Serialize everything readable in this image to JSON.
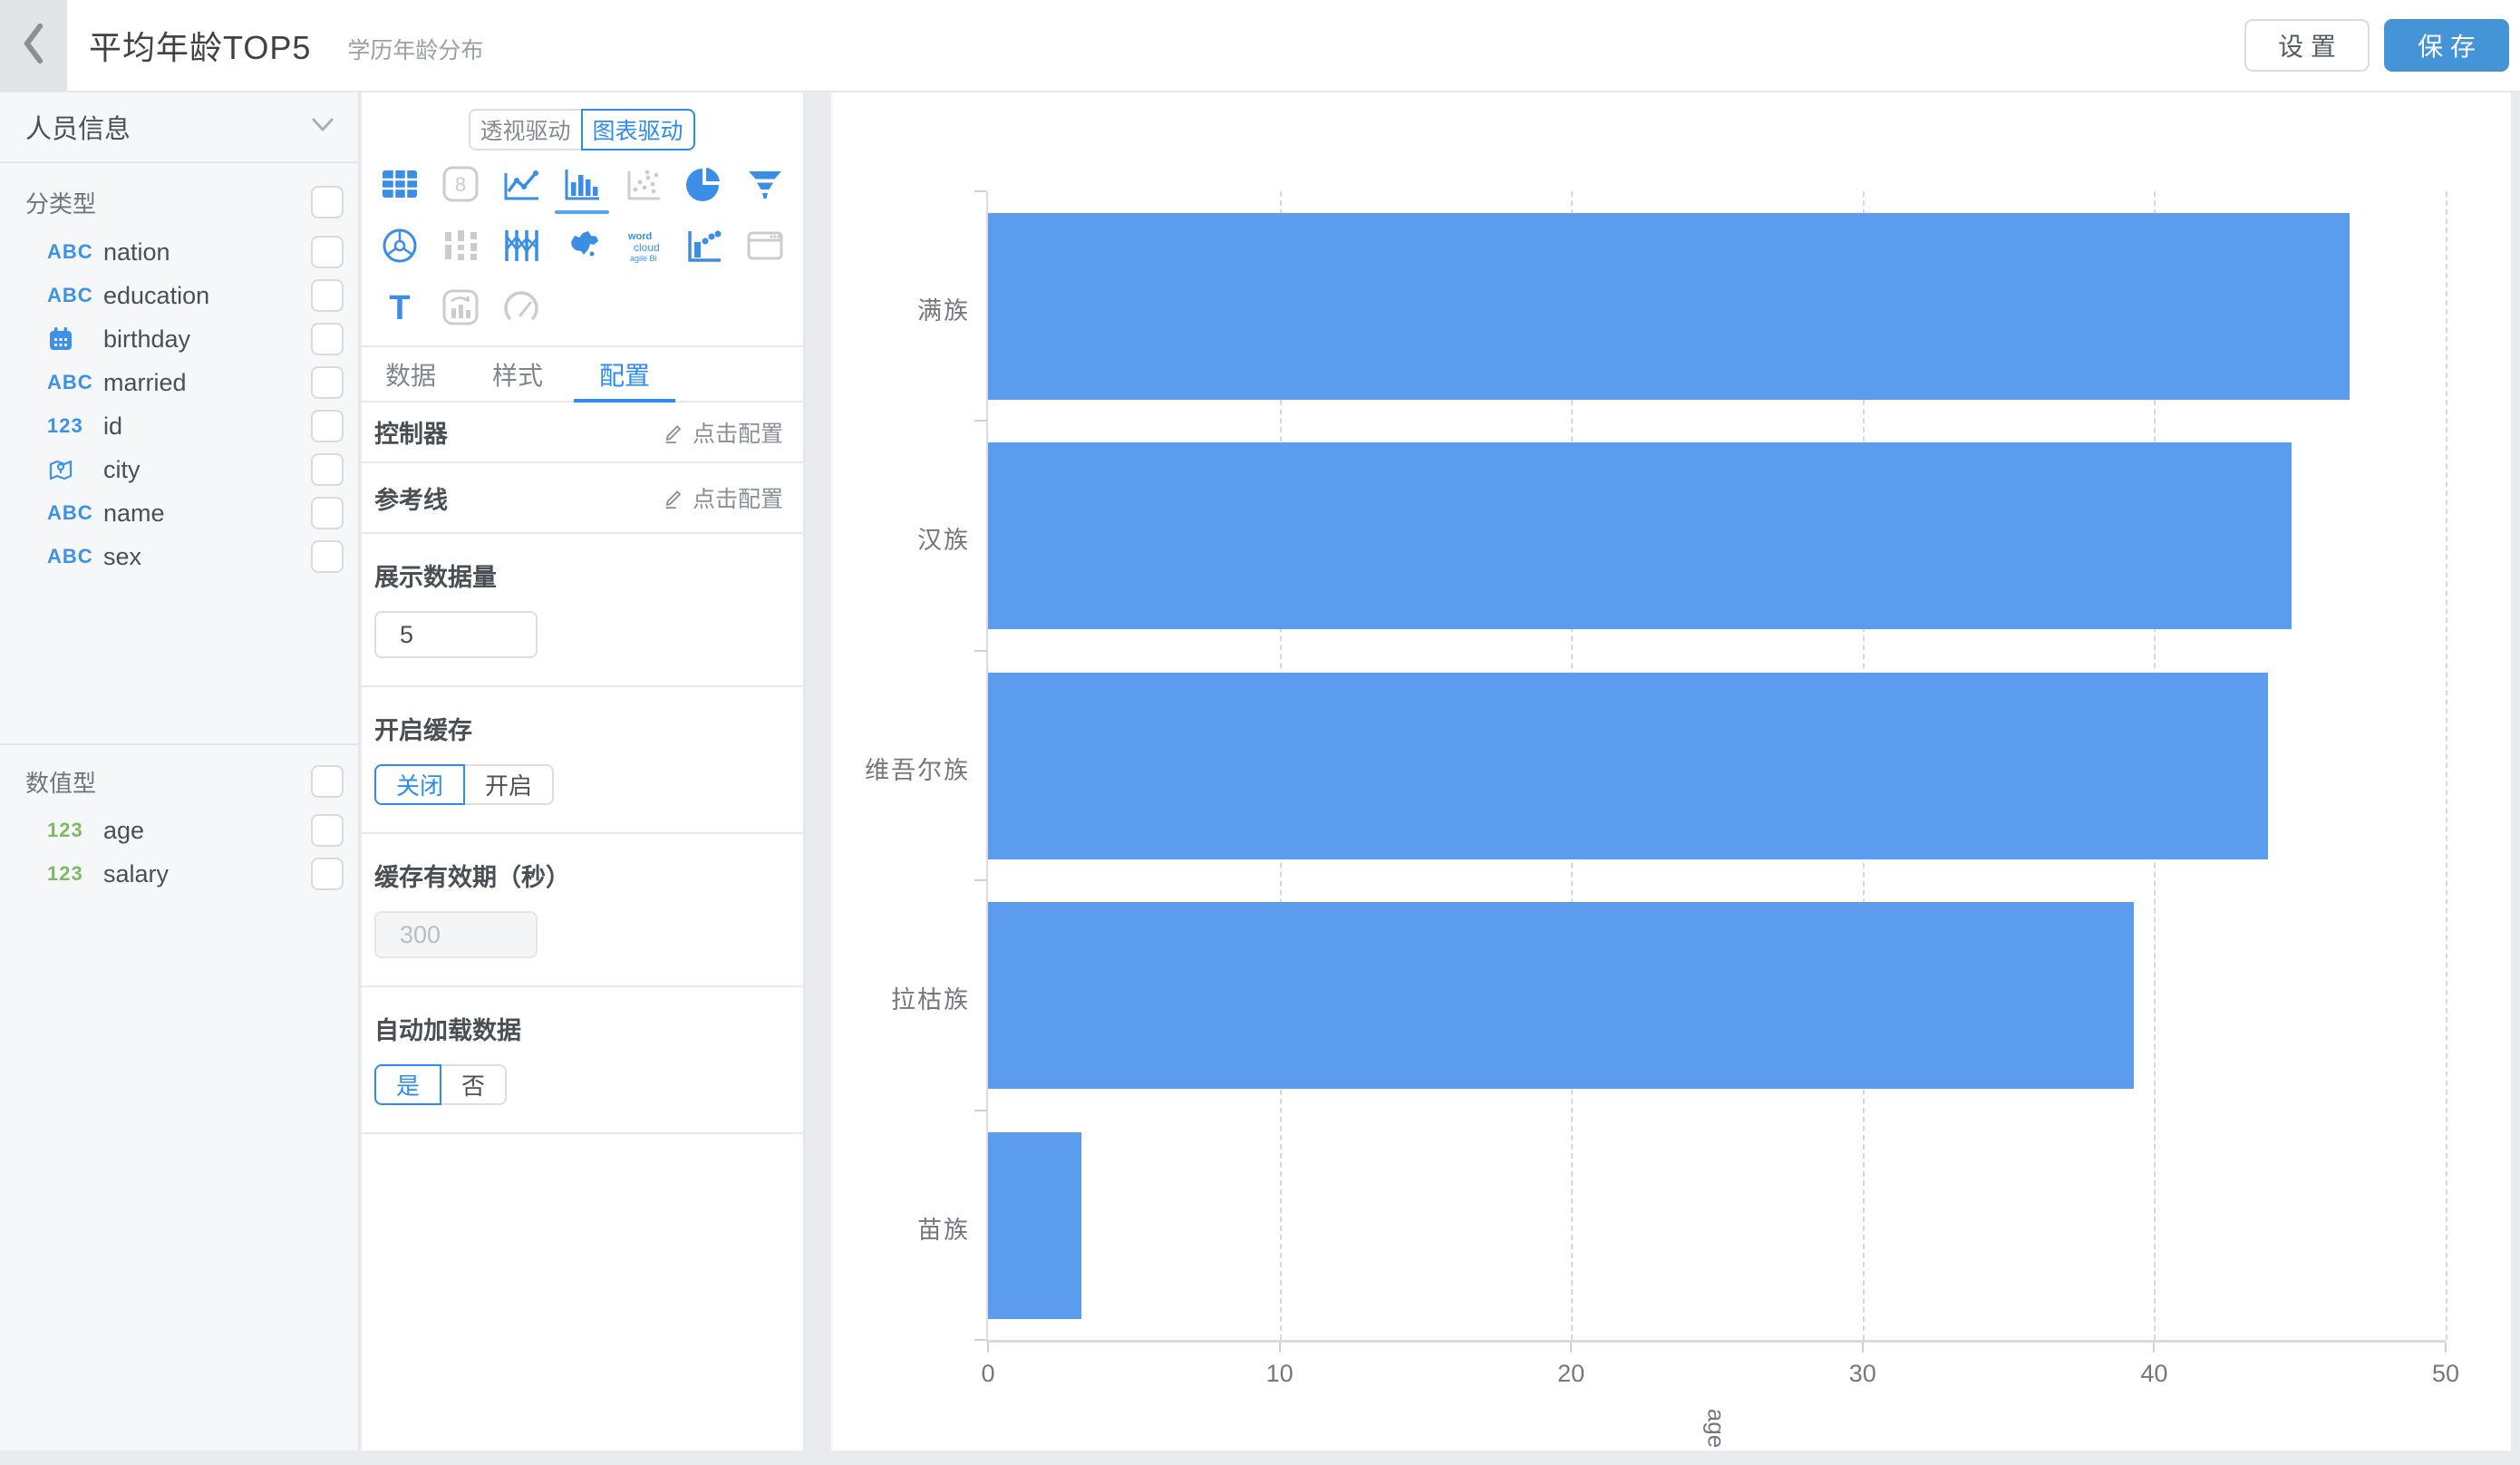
{
  "header": {
    "title": "平均年龄TOP5",
    "subtitle": "学历年龄分布",
    "settings_label": "设 置",
    "save_label": "保 存"
  },
  "sidebar": {
    "dataset_name": "人员信息",
    "dimension_section_label": "分类型",
    "dimension_fields": [
      {
        "icon": "abc",
        "icon_text": "ABC",
        "color": "blue",
        "label": "nation"
      },
      {
        "icon": "abc",
        "icon_text": "ABC",
        "color": "blue",
        "label": "education"
      },
      {
        "icon": "calendar",
        "icon_text": "",
        "color": "blue",
        "label": "birthday"
      },
      {
        "icon": "abc",
        "icon_text": "ABC",
        "color": "blue",
        "label": "married"
      },
      {
        "icon": "num",
        "icon_text": "123",
        "color": "blue",
        "label": "id"
      },
      {
        "icon": "location",
        "icon_text": "",
        "color": "blue",
        "label": "city"
      },
      {
        "icon": "abc",
        "icon_text": "ABC",
        "color": "blue",
        "label": "name"
      },
      {
        "icon": "abc",
        "icon_text": "ABC",
        "color": "blue",
        "label": "sex"
      }
    ],
    "measure_section_label": "数值型",
    "measure_fields": [
      {
        "icon": "num",
        "icon_text": "123",
        "color": "green",
        "label": "age"
      },
      {
        "icon": "num",
        "icon_text": "123",
        "color": "green",
        "label": "salary"
      }
    ]
  },
  "panel": {
    "mode_toggle": {
      "options": [
        "透视驱动",
        "图表驱动"
      ],
      "selected": "图表驱动"
    },
    "icon_labels": {
      "number_card": "8",
      "text_chart": "T",
      "wordcloud": [
        "word",
        "cloud",
        "agile Bi"
      ]
    },
    "tabs": {
      "items": [
        "数据",
        "样式",
        "配置"
      ],
      "selected": "配置"
    },
    "config": {
      "controller": {
        "label": "控制器",
        "action": "点击配置"
      },
      "reference_line": {
        "label": "参考线",
        "action": "点击配置"
      },
      "display_count": {
        "label": "展示数据量",
        "value": "5"
      },
      "cache": {
        "label": "开启缓存",
        "options": [
          "关闭",
          "开启"
        ],
        "selected": "关闭"
      },
      "cache_ttl": {
        "label": "缓存有效期（秒）",
        "value": "300",
        "disabled": true
      },
      "auto_load": {
        "label": "自动加载数据",
        "options": [
          "是",
          "否"
        ],
        "selected": "是"
      }
    }
  },
  "chart_data": {
    "type": "bar",
    "orientation": "horizontal",
    "title": "",
    "categories": [
      "满族",
      "汉族",
      "维吾尔族",
      "拉枯族",
      "苗族"
    ],
    "values": [
      46.7,
      44.7,
      43.9,
      39.3,
      3.2
    ],
    "xlabel": "age",
    "ylabel": "",
    "xlim": [
      0,
      50
    ],
    "xticks": [
      0,
      10,
      20,
      30,
      40,
      50
    ],
    "grid": "vertical-dashed",
    "legend": "none",
    "bar_color": "#5c9cee"
  },
  "colors": {
    "accent": "#2d8cf0",
    "save_button": "#4594d8",
    "bar": "#5c9cee",
    "icon_blue": "#3a8ee6",
    "icon_green": "#7fb965",
    "icon_disabled": "#c9ccd1"
  }
}
